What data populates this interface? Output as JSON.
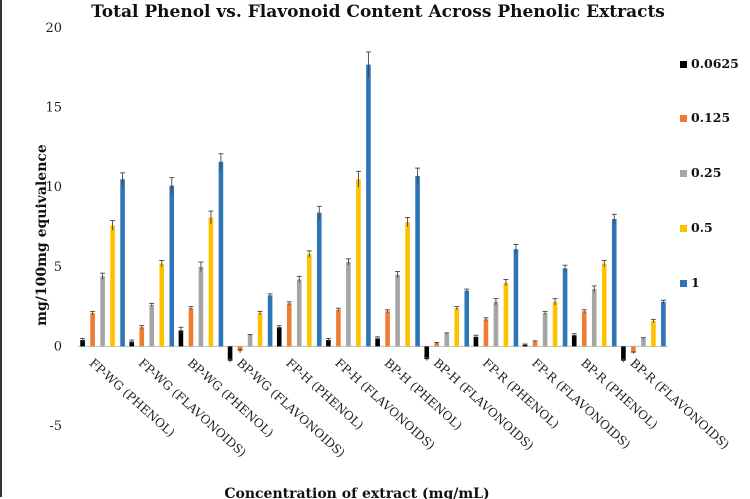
{
  "chart_data": {
    "type": "bar",
    "title": "Total Phenol vs. Flavonoid Content Across Phenolic Extracts",
    "xlabel": "Concentration of extract (mg/mL)",
    "ylabel": "mg/100mg equivalence",
    "ylim": [
      -5,
      20
    ],
    "yticks": [
      -5,
      0,
      5,
      10,
      15,
      20
    ],
    "grid": false,
    "legend_position": "right",
    "categories": [
      "FP-WG (PHENOL)",
      "FP-WG (FLAVONOIDS)",
      "BP-WG (PHENOL)",
      "BP-WG (FLAVONOIDS)",
      "FP-H (PHENOL)",
      "FP-H (FLAVONOIDS)",
      "BP-H (PHENOL)",
      "BP-H (FLAVONOIDS)",
      "FP-R (PHENOL)",
      "FP-R (FLAVONOIDS)",
      "BP-R (PHENOL)",
      "BP-R (FLAVONOIDS)"
    ],
    "series": [
      {
        "name": "0.0625",
        "color": "#000000",
        "values": [
          0.4,
          0.3,
          1.0,
          -0.9,
          1.2,
          0.4,
          0.5,
          -0.8,
          0.6,
          0.1,
          0.7,
          -0.9
        ],
        "errors": [
          0.1,
          0.1,
          0.2,
          0.1,
          0.1,
          0.1,
          0.1,
          0.1,
          0.1,
          0.05,
          0.1,
          0.1
        ]
      },
      {
        "name": "0.125",
        "color": "#ED7D31",
        "values": [
          2.1,
          1.2,
          2.4,
          -0.3,
          2.7,
          2.3,
          2.2,
          0.2,
          1.7,
          0.3,
          2.2,
          -0.4
        ],
        "errors": [
          0.1,
          0.1,
          0.1,
          0.1,
          0.1,
          0.1,
          0.1,
          0.05,
          0.1,
          0.05,
          0.1,
          0.05
        ]
      },
      {
        "name": "0.25",
        "color": "#A5A5A5",
        "values": [
          4.4,
          2.6,
          5.0,
          0.7,
          4.2,
          5.3,
          4.5,
          0.8,
          2.8,
          2.1,
          3.6,
          0.5
        ],
        "errors": [
          0.2,
          0.1,
          0.3,
          0.05,
          0.2,
          0.2,
          0.2,
          0.05,
          0.2,
          0.1,
          0.2,
          0.05
        ]
      },
      {
        "name": "0.5",
        "color": "#FFC000",
        "values": [
          7.6,
          5.2,
          8.1,
          2.1,
          5.8,
          10.5,
          7.8,
          2.4,
          4.0,
          2.8,
          5.2,
          1.6
        ],
        "errors": [
          0.3,
          0.2,
          0.4,
          0.1,
          0.2,
          0.5,
          0.3,
          0.1,
          0.2,
          0.2,
          0.2,
          0.1
        ]
      },
      {
        "name": "1",
        "color": "#2E75B6",
        "values": [
          10.5,
          10.1,
          11.6,
          3.2,
          8.4,
          17.7,
          10.7,
          3.5,
          6.1,
          4.9,
          8.0,
          2.8
        ],
        "errors": [
          0.4,
          0.5,
          0.5,
          0.1,
          0.4,
          0.8,
          0.5,
          0.1,
          0.3,
          0.2,
          0.3,
          0.1
        ]
      }
    ]
  }
}
